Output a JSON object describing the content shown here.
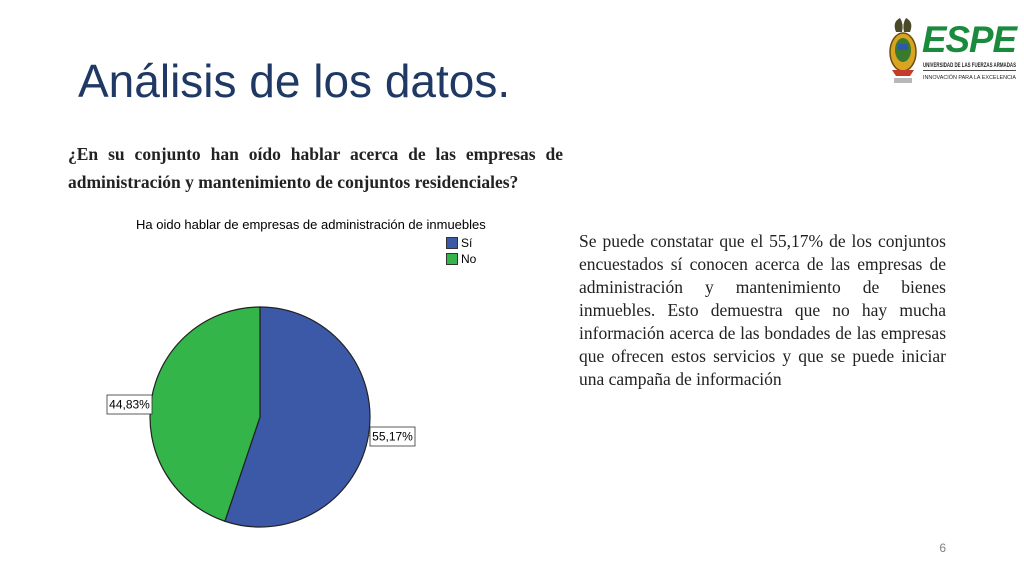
{
  "slide": {
    "title": "Análisis de los datos.",
    "question": "¿En su conjunto han oído hablar acerca de las empresas de administración y mantenimiento de conjuntos residenciales?",
    "body": "Se puede constatar que el 55,17% de los conjuntos encuestados sí conocen acerca de las empresas de administración y mantenimiento de bienes inmuebles. Esto demuestra que no hay mucha información acerca de las bondades de las empresas que ofrecen estos servicios y que se puede iniciar una campaña de información",
    "page_number": "6"
  },
  "logo": {
    "name": "ESPE",
    "subtitle": "UNIVERSIDAD DE LAS FUERZAS ARMADAS",
    "tagline": "INNOVACIÓN PARA LA EXCELENCIA",
    "colors": {
      "green": "#1a8a3c",
      "dark": "#1f1f1f",
      "gold": "#d9a520"
    }
  },
  "chart_data": {
    "type": "pie",
    "title": "Ha oido hablar de empresas de administración de inmuebles",
    "categories": [
      "Sí",
      "No"
    ],
    "values": [
      55.17,
      44.83
    ],
    "labels": [
      "55,17%",
      "44,83%"
    ],
    "colors": [
      "#3c59a8",
      "#33b54a"
    ],
    "legend_position": "top-right"
  }
}
